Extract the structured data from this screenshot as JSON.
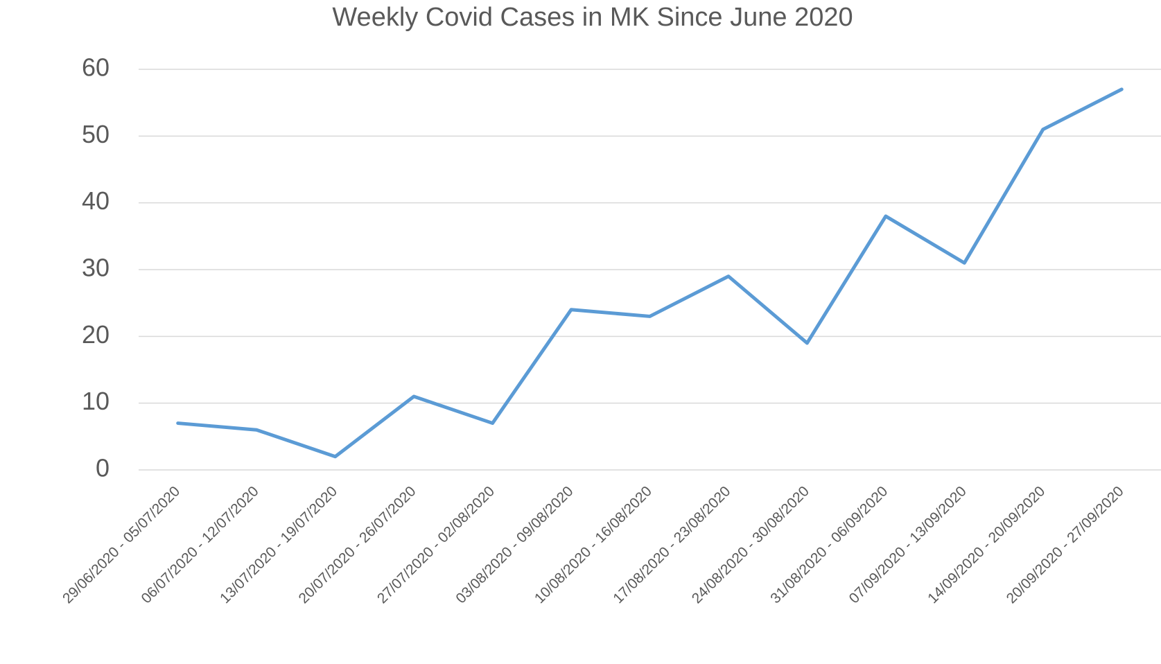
{
  "chart_data": {
    "type": "line",
    "title": "Weekly Covid Cases in MK Since June 2020",
    "categories": [
      "29/06/2020 - 05/07/2020",
      "06/07/2020 - 12/07/2020",
      "13/07/2020 - 19/07/2020",
      "20/07/2020 - 26/07/2020",
      "27/07/2020 - 02/08/2020",
      "03/08/2020 - 09/08/2020",
      "10/08/2020 - 16/08/2020",
      "17/08/2020 - 23/08/2020",
      "24/08/2020 - 30/08/2020",
      "31/08/2020 - 06/09/2020",
      "07/09/2020 - 13/09/2020",
      "14/09/2020 - 20/09/2020",
      "20/09/2020 - 27/09/2020"
    ],
    "values": [
      7,
      6,
      2,
      11,
      7,
      24,
      23,
      29,
      19,
      38,
      31,
      51,
      57
    ],
    "color": "#5b9bd5",
    "ylim": [
      0,
      60
    ],
    "yticks": [
      0,
      10,
      20,
      30,
      40,
      50,
      60
    ],
    "grid": true
  }
}
